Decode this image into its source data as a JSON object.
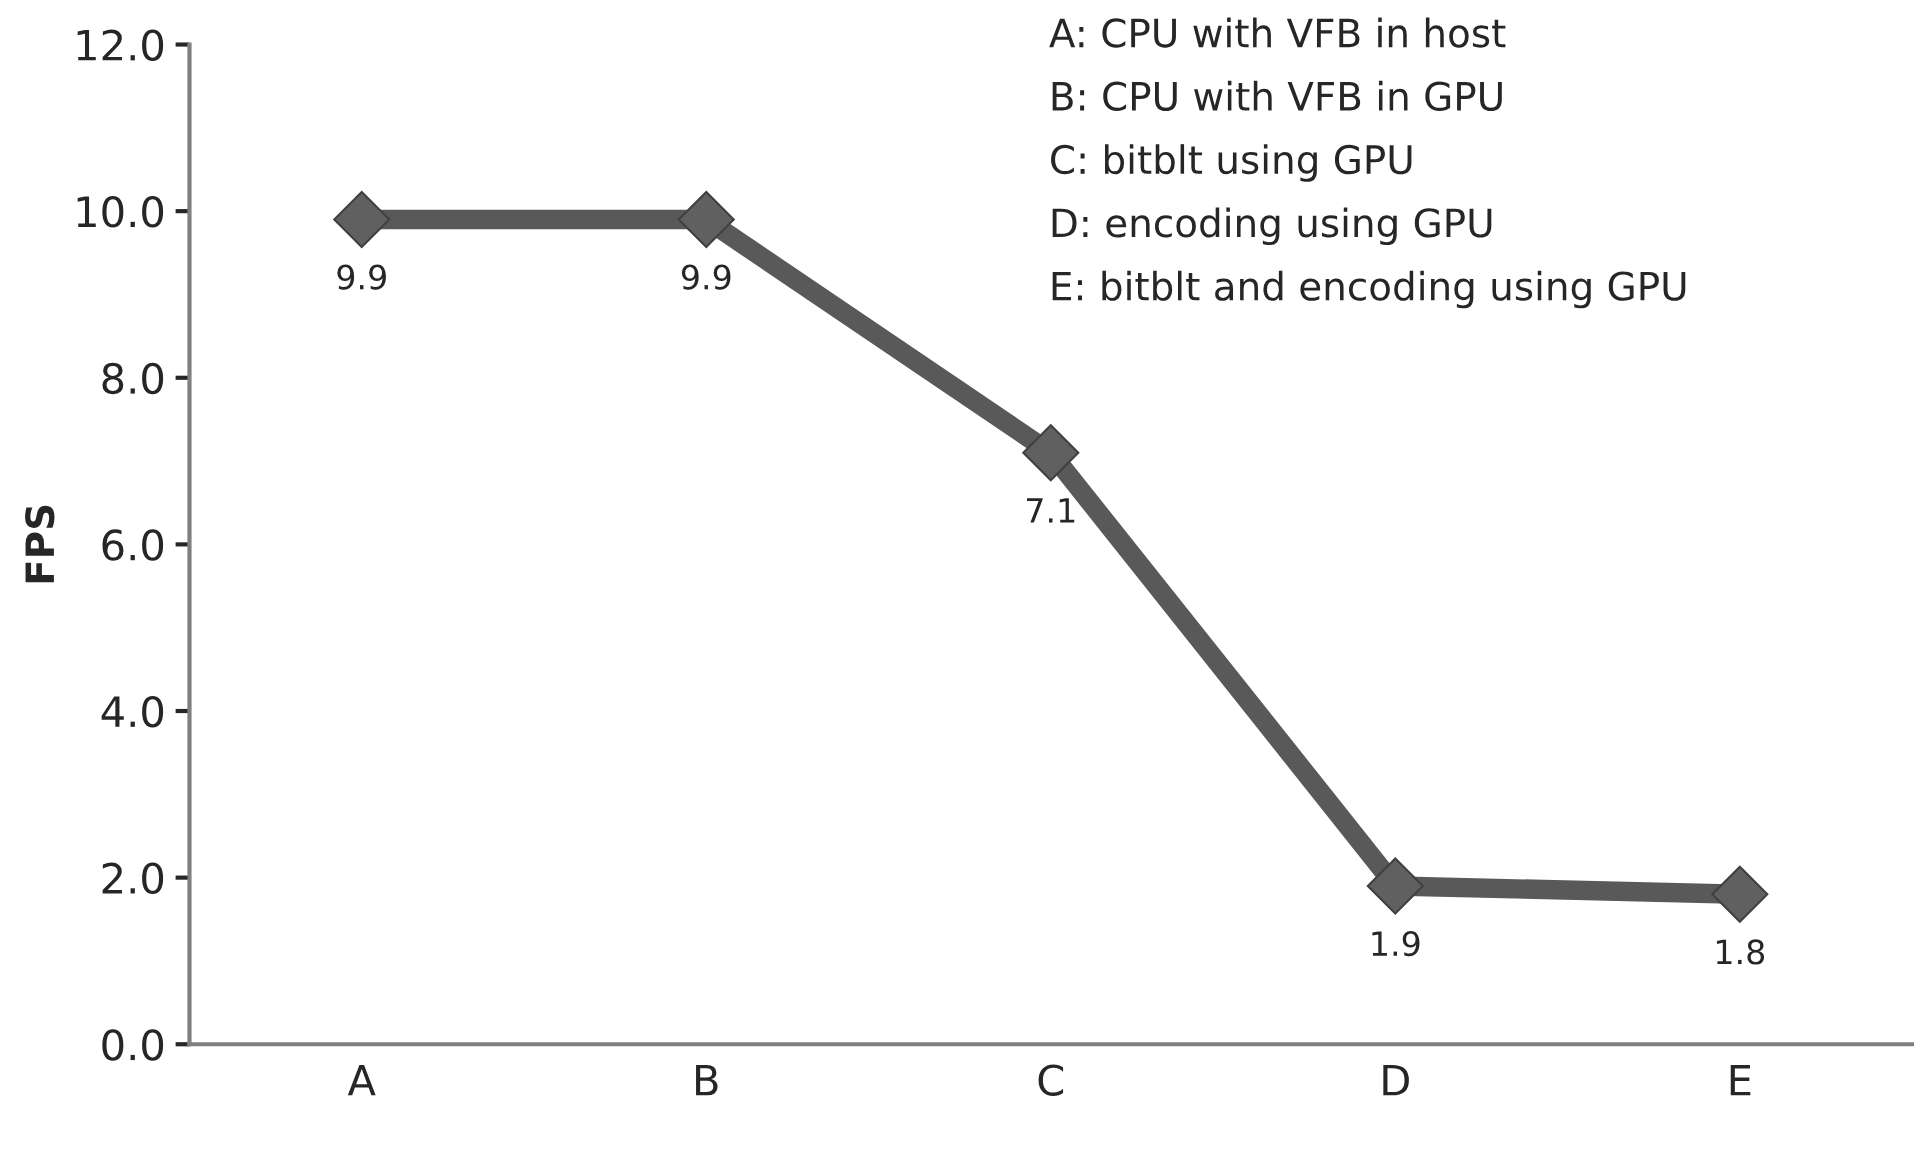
{
  "chart_data": {
    "type": "line",
    "ylabel": "FPS",
    "categories": [
      "A",
      "B",
      "C",
      "D",
      "E"
    ],
    "series": [
      {
        "color": "#595959",
        "values": [
          9.9,
          9.9,
          7.1,
          1.9,
          1.8
        ]
      }
    ],
    "ylim": [
      0,
      12
    ],
    "yticks": [
      {
        "value": 0,
        "label": "0.0"
      },
      {
        "value": 2,
        "label": "2.0"
      },
      {
        "value": 4,
        "label": "4.0"
      },
      {
        "value": 6,
        "label": "6.0"
      },
      {
        "value": 8,
        "label": "8.0"
      },
      {
        "value": 10,
        "label": "10.0"
      },
      {
        "value": 12,
        "label": "12.0"
      }
    ],
    "data_labels": true,
    "marker": "diamond",
    "line_style": "solid",
    "grid": false,
    "annotations": [
      "A: CPU with VFB in host",
      "B: CPU with VFB in GPU",
      "C: bitblt using GPU",
      "D: encoding using GPU",
      "E: bitblt and encoding using GPU"
    ]
  }
}
